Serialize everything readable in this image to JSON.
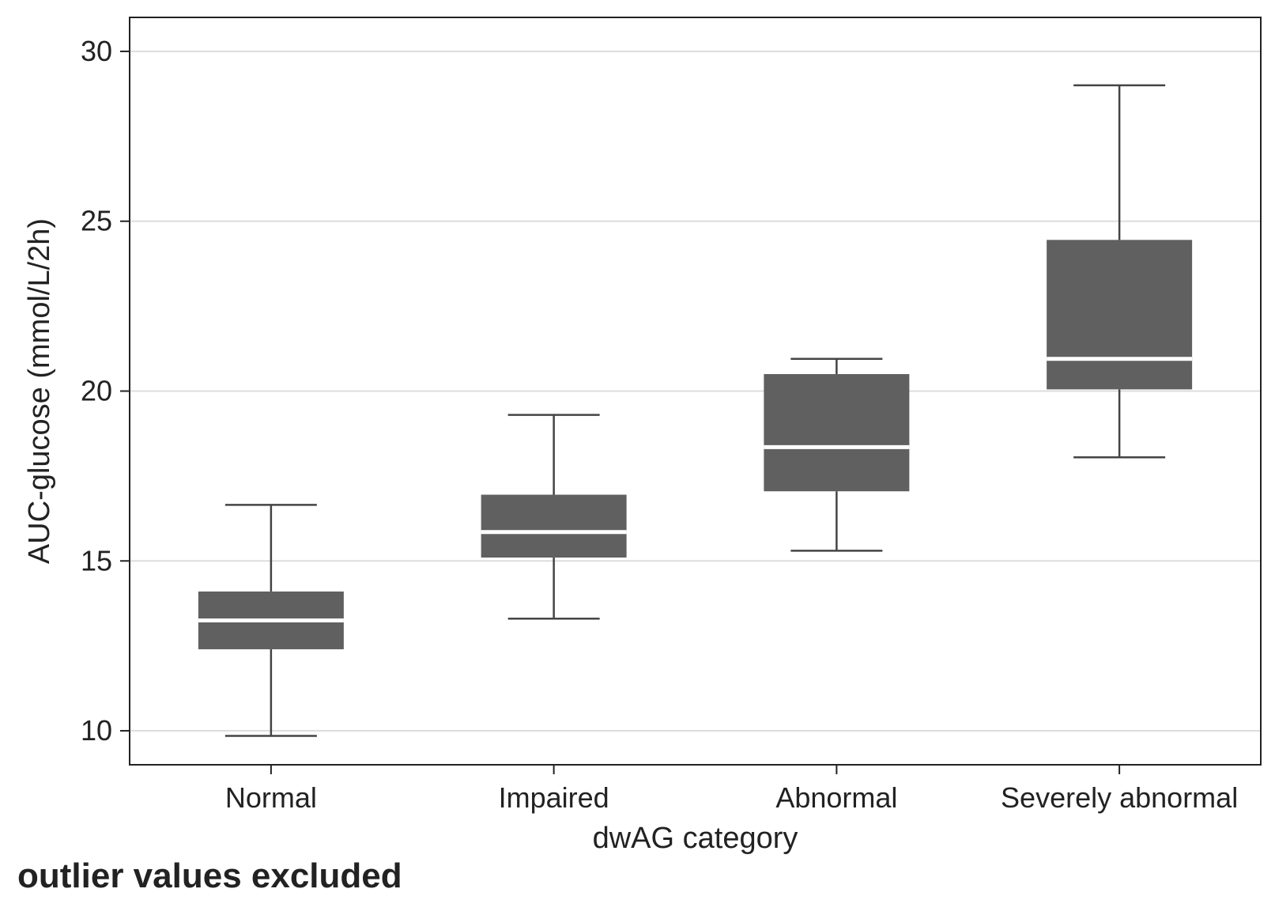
{
  "chart_data": {
    "type": "box",
    "xlabel": "dwAG category",
    "ylabel": "AUC-glucose (mmol/L/2h)",
    "ylim": [
      9,
      31
    ],
    "yticks": [
      10,
      15,
      20,
      25,
      30
    ],
    "grid": "horizontal",
    "categories": [
      "Normal",
      "Impaired",
      "Abnormal",
      "Severely abnormal"
    ],
    "series": [
      {
        "stats": [
          {
            "whisker_low": 9.85,
            "q1": 12.4,
            "median": 13.25,
            "q3": 14.1,
            "whisker_high": 16.65
          },
          {
            "whisker_low": 13.3,
            "q1": 15.1,
            "median": 15.85,
            "q3": 16.95,
            "whisker_high": 19.3
          },
          {
            "whisker_low": 15.3,
            "q1": 17.05,
            "median": 18.35,
            "q3": 20.5,
            "whisker_high": 20.95
          },
          {
            "whisker_low": 18.05,
            "q1": 20.05,
            "median": 20.95,
            "q3": 24.45,
            "whisker_high": 29.0
          }
        ]
      }
    ],
    "colors": {
      "box": "#606060",
      "median": "#ffffff",
      "whisker": "#444444",
      "grid": "#dddddd",
      "frame": "#222222"
    }
  },
  "footnote": "outlier values excluded"
}
